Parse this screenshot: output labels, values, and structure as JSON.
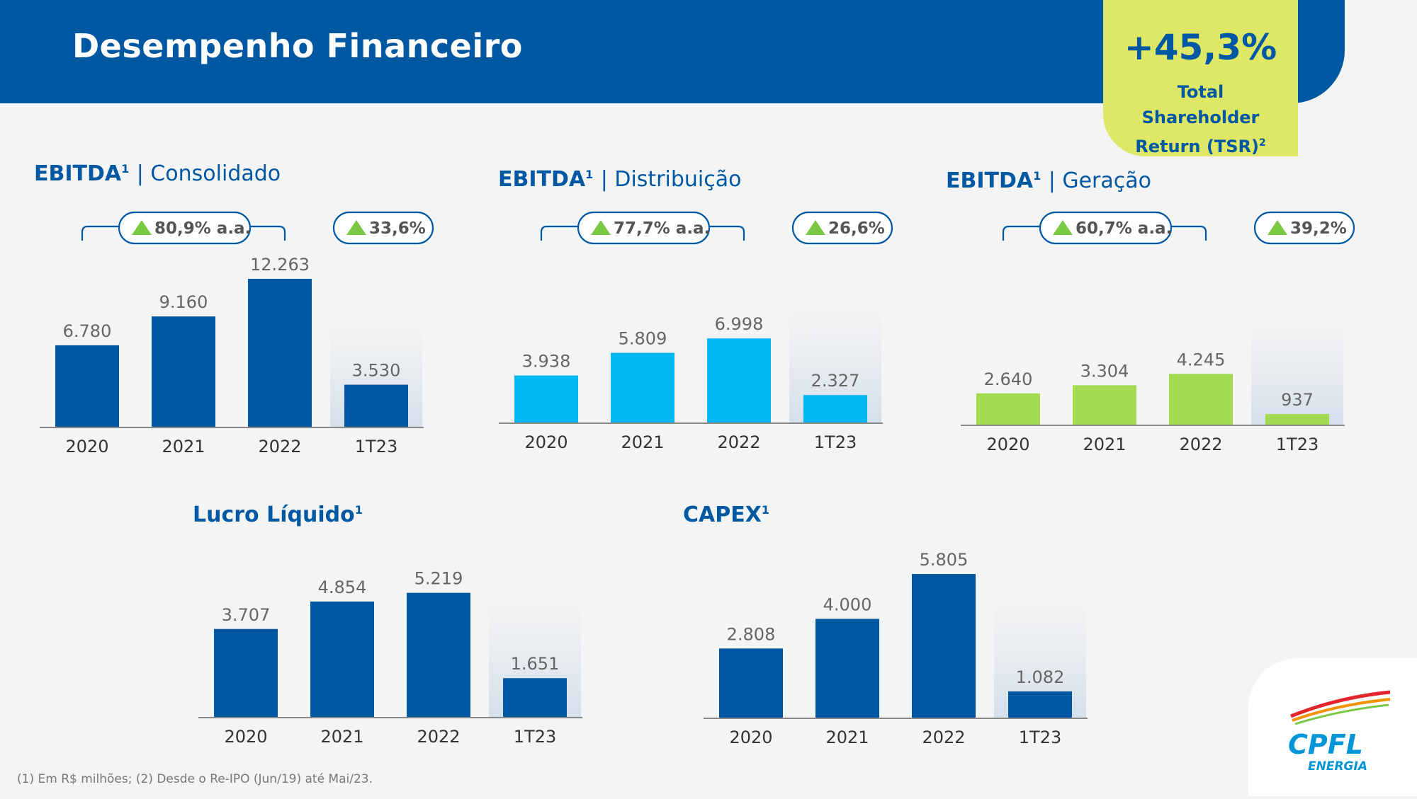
{
  "header": {
    "title": "Desempenho Financeiro",
    "tsr_value": "+45,3%",
    "tsr_label": "Total Shareholder Return (TSR)",
    "tsr_note_mark": "2"
  },
  "colors": {
    "primary": "#0058a3",
    "light_blue": "#00b7f1",
    "green": "#a2da52",
    "accent_yellow": "#dfe766",
    "header_bg": "#0058a3",
    "badge_triangle": "#7ac943"
  },
  "footnote": "(1) Em R$ milhões; (2) Desde o Re-IPO (Jun/19) até Mai/23.",
  "logo": {
    "name": "CPFL",
    "subname": "ENERGIA"
  },
  "chart_data": [
    {
      "type": "bar",
      "title_bold": "EBITDA",
      "note_mark": "1",
      "title_sub": "| Consolidado",
      "categories": [
        "2020",
        "2021",
        "2022",
        "1T23"
      ],
      "values": [
        6780,
        9160,
        12263,
        3530
      ],
      "value_labels": [
        "6.780",
        "9.160",
        "12.263",
        "3.530"
      ],
      "cagr_label": "80,9% a.a.",
      "growth_label": "33,6%",
      "color": "#0058a3",
      "ylim": [
        0,
        12263
      ]
    },
    {
      "type": "bar",
      "title_bold": "EBITDA",
      "note_mark": "1",
      "title_sub": "| Distribuição",
      "categories": [
        "2020",
        "2021",
        "2022",
        "1T23"
      ],
      "values": [
        3938,
        5809,
        6998,
        2327
      ],
      "value_labels": [
        "3.938",
        "5.809",
        "6.998",
        "2.327"
      ],
      "cagr_label": "77,7% a.a.",
      "growth_label": "26,6%",
      "color": "#00b7f1",
      "ylim": [
        0,
        12263
      ]
    },
    {
      "type": "bar",
      "title_bold": "EBITDA",
      "note_mark": "1",
      "title_sub": "| Geração",
      "categories": [
        "2020",
        "2021",
        "2022",
        "1T23"
      ],
      "values": [
        2640,
        3304,
        4245,
        937
      ],
      "value_labels": [
        "2.640",
        "3.304",
        "4.245",
        "937"
      ],
      "cagr_label": "60,7% a.a.",
      "growth_label": "39,2%",
      "color": "#a2da52",
      "ylim": [
        0,
        12263
      ]
    },
    {
      "type": "bar",
      "title_bold": "Lucro Líquido",
      "note_mark": "1",
      "title_sub": "",
      "categories": [
        "2020",
        "2021",
        "2022",
        "1T23"
      ],
      "values": [
        3707,
        4854,
        5219,
        1651
      ],
      "value_labels": [
        "3.707",
        "4.854",
        "5.219",
        "1.651"
      ],
      "color": "#0058a3",
      "ylim": [
        0,
        7400
      ]
    },
    {
      "type": "bar",
      "title_bold": "CAPEX",
      "note_mark": "1",
      "title_sub": "",
      "categories": [
        "2020",
        "2021",
        "2022",
        "1T23"
      ],
      "values": [
        2808,
        4000,
        5805,
        1082
      ],
      "value_labels": [
        "2.808",
        "4.000",
        "5.805",
        "1.082"
      ],
      "color": "#0058a3",
      "ylim": [
        0,
        7400
      ]
    }
  ]
}
